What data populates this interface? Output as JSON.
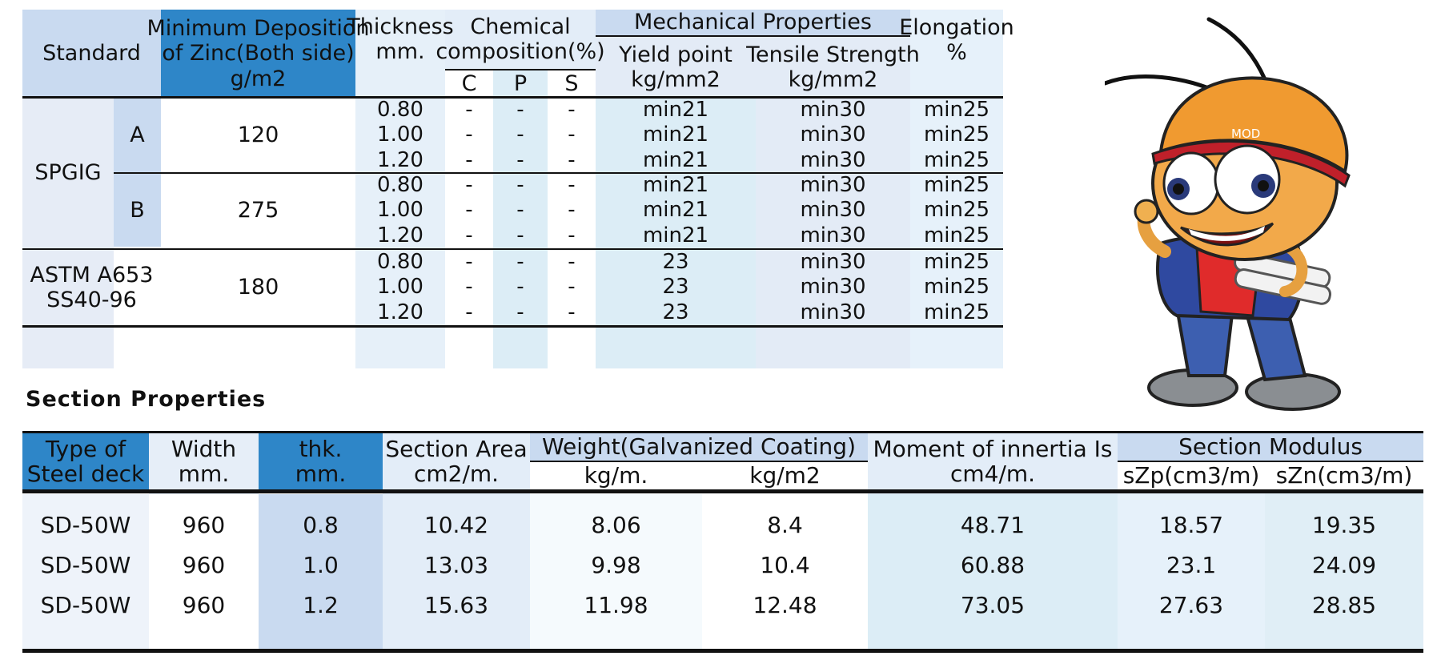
{
  "table1": {
    "headers": {
      "standard": "Standard",
      "zinc": [
        "Minimum Deposition",
        "of Zinc(Both side)",
        "g/m2"
      ],
      "thickness": [
        "Thickness",
        "mm."
      ],
      "chemical": [
        "Chemical",
        "composition(%)"
      ],
      "chem_c": "C",
      "chem_p": "P",
      "chem_s": "S",
      "mechanical": "Mechanical Properties",
      "yield": [
        "Yield point",
        "kg/mm2"
      ],
      "tensile": [
        "Tensile Strength",
        "kg/mm2"
      ],
      "elongation": [
        "Elongation",
        "%"
      ]
    },
    "groups": [
      {
        "standard": "SPGIG",
        "grade": "A",
        "zinc": "120",
        "rows": [
          {
            "thk": "0.80",
            "c": "-",
            "p": "-",
            "s": "-",
            "yield": "min21",
            "tensile": "min30",
            "elong": "min25"
          },
          {
            "thk": "1.00",
            "c": "-",
            "p": "-",
            "s": "-",
            "yield": "min21",
            "tensile": "min30",
            "elong": "min25"
          },
          {
            "thk": "1.20",
            "c": "-",
            "p": "-",
            "s": "-",
            "yield": "min21",
            "tensile": "min30",
            "elong": "min25"
          }
        ]
      },
      {
        "standard": "SPGIG",
        "grade": "B",
        "zinc": "275",
        "rows": [
          {
            "thk": "0.80",
            "c": "-",
            "p": "-",
            "s": "-",
            "yield": "min21",
            "tensile": "min30",
            "elong": "min25"
          },
          {
            "thk": "1.00",
            "c": "-",
            "p": "-",
            "s": "-",
            "yield": "min21",
            "tensile": "min30",
            "elong": "min25"
          },
          {
            "thk": "1.20",
            "c": "-",
            "p": "-",
            "s": "-",
            "yield": "min21",
            "tensile": "min30",
            "elong": "min25"
          }
        ]
      },
      {
        "standard": "ASTM A653 SS40-96",
        "standard_lines": [
          "ASTM A653",
          "SS40-96"
        ],
        "grade": "",
        "zinc": "180",
        "rows": [
          {
            "thk": "0.80",
            "c": "-",
            "p": "-",
            "s": "-",
            "yield": "23",
            "tensile": "min30",
            "elong": "min25"
          },
          {
            "thk": "1.00",
            "c": "-",
            "p": "-",
            "s": "-",
            "yield": "23",
            "tensile": "min30",
            "elong": "min25"
          },
          {
            "thk": "1.20",
            "c": "-",
            "p": "-",
            "s": "-",
            "yield": "23",
            "tensile": "min30",
            "elong": "min25"
          }
        ]
      }
    ],
    "spgig_label": "SPGIG"
  },
  "section_title": "Section Properties",
  "table2": {
    "headers": {
      "type": [
        "Type of",
        "Steel deck"
      ],
      "width": [
        "Width",
        "mm."
      ],
      "thk": [
        "thk.",
        "mm."
      ],
      "area": [
        "Section Area",
        "cm2/m."
      ],
      "weight": "Weight(Galvanized Coating)",
      "weight_kgm": "kg/m.",
      "weight_kgm2": "kg/m2",
      "moment": [
        "Moment of innertia Is",
        "cm4/m."
      ],
      "modulus": "Section Modulus",
      "szp": "sZp(cm3/m)",
      "szn": "sZn(cm3/m)"
    },
    "rows": [
      {
        "type": "SD-50W",
        "width": "960",
        "thk": "0.8",
        "area": "10.42",
        "kgm": "8.06",
        "kgm2": "8.4",
        "moment": "48.71",
        "szp": "18.57",
        "szn": "19.35"
      },
      {
        "type": "SD-50W",
        "width": "960",
        "thk": "1.0",
        "area": "13.03",
        "kgm": "9.98",
        "kgm2": "10.4",
        "moment": "60.88",
        "szp": "23.1",
        "szn": "24.09"
      },
      {
        "type": "SD-50W",
        "width": "960",
        "thk": "1.2",
        "area": "15.63",
        "kgm": "11.98",
        "kgm2": "12.48",
        "moment": "73.05",
        "szp": "27.63",
        "szn": "28.85"
      }
    ]
  },
  "mascot": {
    "cap_text": "MOD"
  },
  "colors": {
    "header_light": "#c9daf0",
    "header_blue": "#2e86c8",
    "col_light": "#e3edf8",
    "col_lighter": "#eef4fb",
    "col_aqua": "#dcedf6",
    "white": "#ffffff"
  }
}
